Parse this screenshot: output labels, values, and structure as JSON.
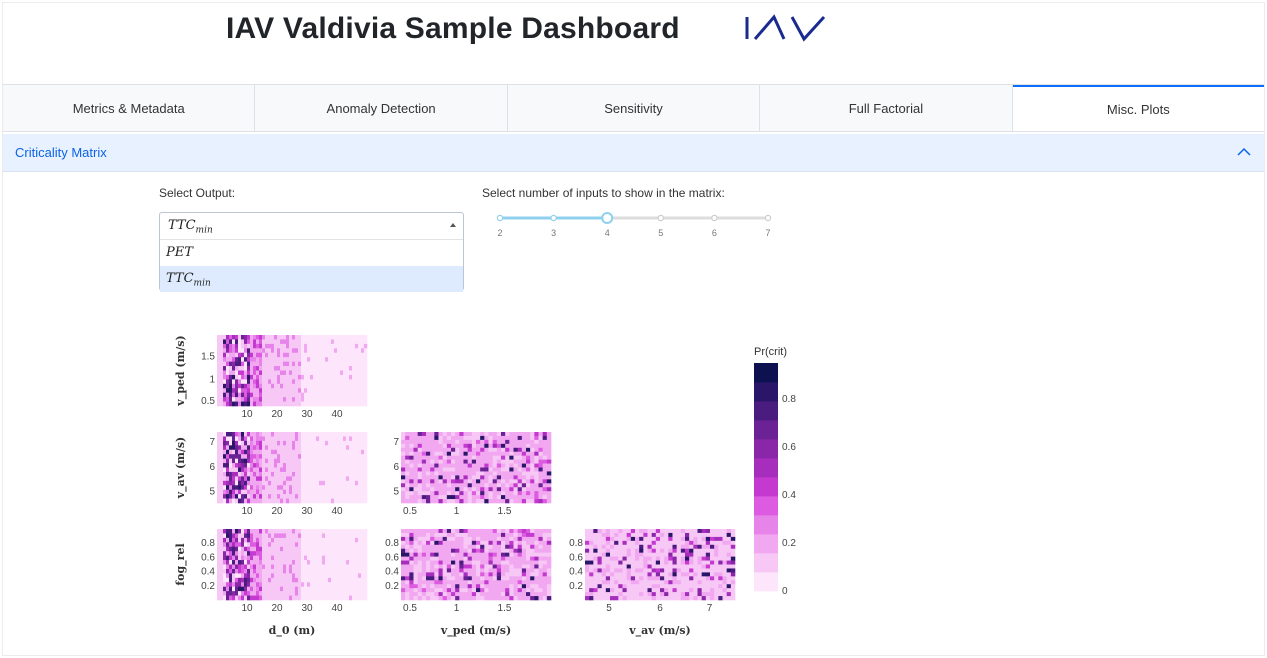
{
  "header": {
    "title": "IAV Valdivia Sample Dashboard",
    "logo_text": "IAV"
  },
  "tabs": [
    {
      "label": "Metrics & Metadata",
      "active": false
    },
    {
      "label": "Anomaly Detection",
      "active": false
    },
    {
      "label": "Sensitivity",
      "active": false
    },
    {
      "label": "Full Factorial",
      "active": false
    },
    {
      "label": "Misc. Plots",
      "active": true
    }
  ],
  "accordion": {
    "title": "Criticality Matrix",
    "icon": "chevron-up-icon",
    "expanded": true
  },
  "controls": {
    "output_label": "Select Output:",
    "output_selected": {
      "base": "TTC",
      "sub": "min"
    },
    "output_options": [
      {
        "base": "PET",
        "sub": ""
      },
      {
        "base": "TTC",
        "sub": "min"
      }
    ],
    "inputs_label": "Select number of inputs to show in the matrix:",
    "slider": {
      "marks": [
        "2",
        "3",
        "4",
        "5",
        "6",
        "7"
      ],
      "value": 4,
      "min": 2,
      "max": 7
    }
  },
  "colors": {
    "accent": "#0d6efd",
    "accordion_bg": "#e7f1ff",
    "slider": "#8fd0ee"
  },
  "chart_data": {
    "type": "heatmap",
    "colorbar": {
      "title": "Pr(crit)",
      "ticks": [
        "0.8",
        "0.6",
        "0.4",
        "0.2",
        "0"
      ],
      "range": [
        0,
        0.95
      ]
    },
    "panels": [
      {
        "id": "vped-d0",
        "row_label": "v_ped (m/s)",
        "x_ticks": [
          "10",
          "20",
          "30",
          "40"
        ],
        "y_ticks": [
          "1.5",
          "1",
          "0.5"
        ]
      },
      {
        "id": "vav-d0",
        "row_label": "v_av (m/s)",
        "x_ticks": [
          "10",
          "20",
          "30",
          "40"
        ],
        "y_ticks": [
          "7",
          "6",
          "5"
        ]
      },
      {
        "id": "vav-vped",
        "x_ticks": [
          "0.5",
          "1",
          "1.5"
        ],
        "y_ticks": [
          "7",
          "6",
          "5"
        ]
      },
      {
        "id": "fog-d0",
        "row_label": "fog_rel",
        "x_ticks": [
          "10",
          "20",
          "30",
          "40"
        ],
        "y_ticks": [
          "0.8",
          "0.6",
          "0.4",
          "0.2"
        ]
      },
      {
        "id": "fog-vped",
        "x_ticks": [
          "0.5",
          "1",
          "1.5"
        ],
        "y_ticks": [
          "0.8",
          "0.6",
          "0.4",
          "0.2"
        ]
      },
      {
        "id": "fog-vav",
        "x_ticks": [
          "5",
          "6",
          "7"
        ],
        "y_ticks": [
          "0.8",
          "0.6",
          "0.4",
          "0.2"
        ]
      }
    ],
    "x_labels": [
      "d_0 (m)",
      "v_ped (m/s)",
      "v_av (m/s)"
    ]
  }
}
